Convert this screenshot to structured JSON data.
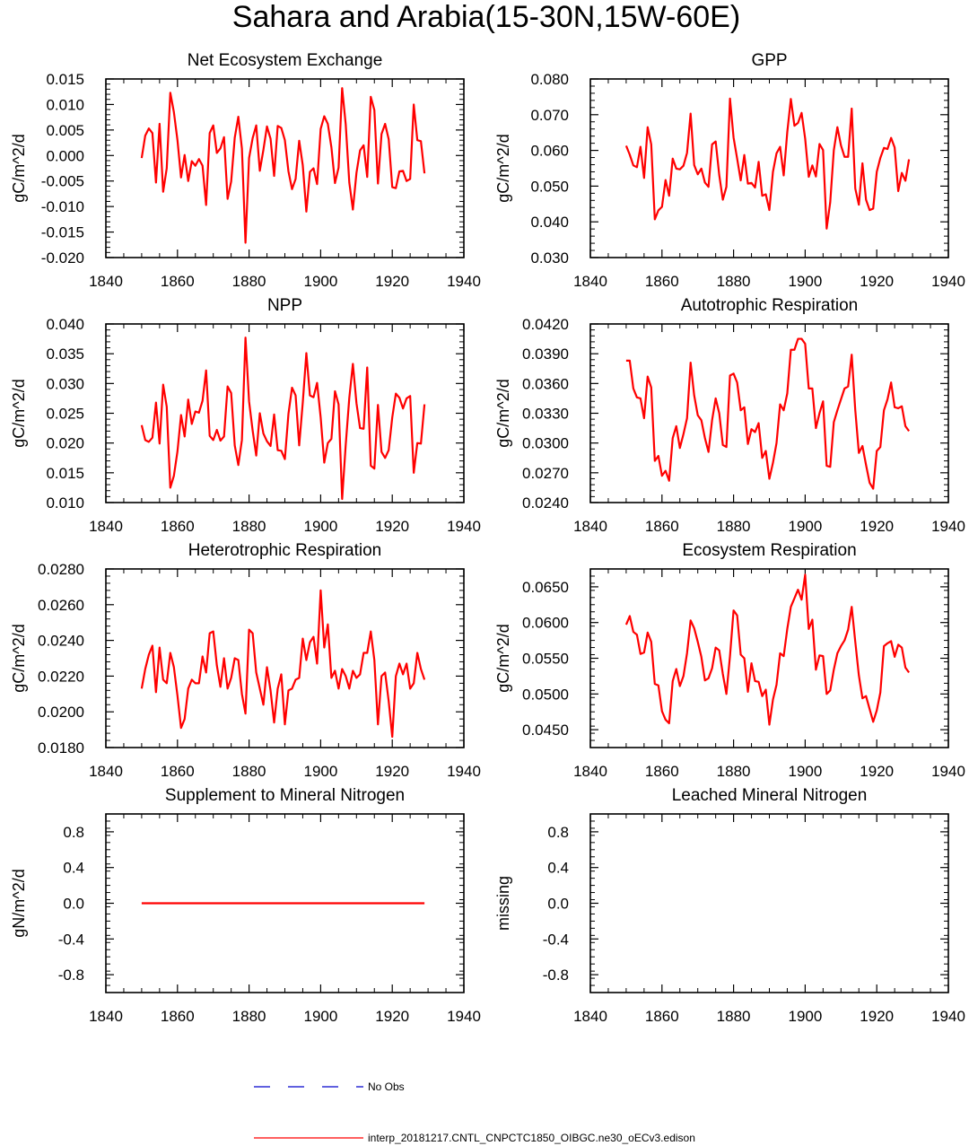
{
  "figure_title": "Sahara and Arabia(15-30N,15W-60E)",
  "legend": [
    {
      "label": "No Obs",
      "color": "#0000cc",
      "style": "dashed"
    },
    {
      "label": "interp_20181217.CNTL_CNPCTC1850_OIBGC.ne30_oECv3.edison",
      "color": "#ff0000",
      "style": "solid"
    }
  ],
  "line_color": "#ff0000",
  "chart_data": [
    {
      "type": "line",
      "title": "Net Ecosystem Exchange",
      "ylabel": "gC/m^2/d",
      "xlim": [
        1840,
        1940
      ],
      "ylim": [
        -0.02,
        0.015
      ],
      "xticks": [
        "1840",
        "1860",
        "1880",
        "1900",
        "1920",
        "1940"
      ],
      "yticks": [
        "-0.020",
        "-0.015",
        "-0.010",
        "-0.005",
        "0.000",
        "0.005",
        "0.010",
        "0.015"
      ],
      "x_start": 1850,
      "values": [
        -0.0005,
        0.0039,
        0.0053,
        0.0044,
        -0.0053,
        0.0062,
        -0.0071,
        -0.0025,
        0.0123,
        0.0085,
        0.003,
        -0.0043,
        0.0001,
        -0.005,
        -0.0011,
        -0.002,
        -0.0007,
        -0.002,
        -0.0097,
        0.0044,
        0.0059,
        0.0005,
        0.0014,
        0.0036,
        -0.0085,
        -0.0051,
        0.0035,
        0.0076,
        0.0014,
        -0.0171,
        -0.0005,
        0.0034,
        0.0059,
        -0.003,
        0.0011,
        0.0057,
        0.0033,
        -0.004,
        0.0058,
        0.0054,
        0.003,
        -0.0031,
        -0.0066,
        -0.0046,
        0.0029,
        -0.0019,
        -0.011,
        -0.0032,
        -0.0025,
        -0.0056,
        0.0052,
        0.0077,
        0.0062,
        0.0016,
        -0.0054,
        -0.0024,
        0.0132,
        0.0061,
        -0.0053,
        -0.0106,
        -0.0034,
        0.001,
        0.002,
        -0.0042,
        0.0115,
        0.0089,
        -0.0055,
        0.0042,
        0.0062,
        0.0032,
        -0.0062,
        -0.0064,
        -0.0031,
        -0.003,
        -0.005,
        -0.0046,
        0.01,
        0.003,
        0.0028,
        -0.0035
      ]
    },
    {
      "type": "line",
      "title": "GPP",
      "ylabel": "gC/m^2/d",
      "xlim": [
        1840,
        1940
      ],
      "ylim": [
        0.03,
        0.08
      ],
      "xticks": [
        "1840",
        "1860",
        "1880",
        "1900",
        "1920",
        "1940"
      ],
      "yticks": [
        "0.030",
        "0.040",
        "0.050",
        "0.060",
        "0.070",
        "0.080"
      ],
      "x_start": 1850,
      "values": [
        0.0613,
        0.0588,
        0.0558,
        0.0553,
        0.061,
        0.0523,
        0.0665,
        0.0617,
        0.0407,
        0.0432,
        0.0442,
        0.0517,
        0.0473,
        0.0577,
        0.0549,
        0.0547,
        0.0557,
        0.0593,
        0.0703,
        0.0559,
        0.0533,
        0.0549,
        0.051,
        0.0498,
        0.0617,
        0.0625,
        0.0531,
        0.0462,
        0.0498,
        0.0745,
        0.0636,
        0.0577,
        0.0516,
        0.0587,
        0.0507,
        0.0509,
        0.0496,
        0.0568,
        0.0473,
        0.0477,
        0.0433,
        0.054,
        0.0592,
        0.061,
        0.053,
        0.0651,
        0.0744,
        0.0669,
        0.0677,
        0.0705,
        0.0633,
        0.0526,
        0.0558,
        0.0527,
        0.0618,
        0.0601,
        0.0381,
        0.0455,
        0.06,
        0.0665,
        0.0614,
        0.0582,
        0.0582,
        0.0717,
        0.0493,
        0.0448,
        0.0564,
        0.0462,
        0.0433,
        0.0437,
        0.054,
        0.0579,
        0.0607,
        0.0604,
        0.0635,
        0.0608,
        0.0486,
        0.0537,
        0.0515,
        0.0575
      ]
    },
    {
      "type": "line",
      "title": "NPP",
      "ylabel": "gC/m^2/d",
      "xlim": [
        1840,
        1940
      ],
      "ylim": [
        0.01,
        0.04
      ],
      "xticks": [
        "1840",
        "1860",
        "1880",
        "1900",
        "1920",
        "1940"
      ],
      "yticks": [
        "0.010",
        "0.015",
        "0.020",
        "0.025",
        "0.030",
        "0.035",
        "0.040"
      ],
      "x_start": 1850,
      "values": [
        0.023,
        0.0205,
        0.0202,
        0.0209,
        0.0268,
        0.0199,
        0.0298,
        0.0261,
        0.0125,
        0.0145,
        0.0186,
        0.0247,
        0.0211,
        0.0273,
        0.0232,
        0.0253,
        0.0251,
        0.0271,
        0.0322,
        0.0212,
        0.0205,
        0.0222,
        0.0204,
        0.0211,
        0.0295,
        0.0284,
        0.0196,
        0.0163,
        0.0205,
        0.0377,
        0.027,
        0.0221,
        0.0179,
        0.025,
        0.0216,
        0.0203,
        0.0195,
        0.0248,
        0.0188,
        0.0187,
        0.0173,
        0.0249,
        0.0293,
        0.028,
        0.0196,
        0.0268,
        0.0351,
        0.028,
        0.0277,
        0.0301,
        0.0243,
        0.0167,
        0.02,
        0.0207,
        0.0287,
        0.0265,
        0.0106,
        0.0197,
        0.0276,
        0.0333,
        0.0267,
        0.0225,
        0.0224,
        0.0327,
        0.0162,
        0.0157,
        0.0264,
        0.0185,
        0.0175,
        0.0188,
        0.0243,
        0.0283,
        0.0276,
        0.0258,
        0.0275,
        0.0279,
        0.015,
        0.02,
        0.0199,
        0.0265
      ]
    },
    {
      "type": "line",
      "title": "Autotrophic Respiration",
      "ylabel": "gC/m^2/d",
      "xlim": [
        1840,
        1940
      ],
      "ylim": [
        0.024,
        0.042
      ],
      "xticks": [
        "1840",
        "1860",
        "1880",
        "1900",
        "1920",
        "1940"
      ],
      "yticks": [
        "0.0240",
        "0.0270",
        "0.0300",
        "0.0330",
        "0.0360",
        "0.0390",
        "0.0420"
      ],
      "x_start": 1850,
      "values": [
        0.0383,
        0.0383,
        0.0355,
        0.0346,
        0.0345,
        0.0325,
        0.0367,
        0.0356,
        0.0282,
        0.0287,
        0.0267,
        0.0272,
        0.0262,
        0.0305,
        0.0317,
        0.0295,
        0.0309,
        0.0325,
        0.0381,
        0.0348,
        0.0328,
        0.0323,
        0.0305,
        0.0291,
        0.0323,
        0.0345,
        0.033,
        0.0298,
        0.0296,
        0.0368,
        0.037,
        0.0361,
        0.0333,
        0.0336,
        0.0299,
        0.0314,
        0.0311,
        0.032,
        0.0285,
        0.0292,
        0.0264,
        0.028,
        0.03,
        0.0339,
        0.0333,
        0.035,
        0.0394,
        0.0394,
        0.0405,
        0.0405,
        0.04,
        0.0355,
        0.0355,
        0.0315,
        0.033,
        0.0342,
        0.0277,
        0.0276,
        0.0321,
        0.0333,
        0.0344,
        0.0355,
        0.0357,
        0.0389,
        0.0333,
        0.029,
        0.0297,
        0.0278,
        0.026,
        0.0254,
        0.0292,
        0.0296,
        0.0333,
        0.0344,
        0.0361,
        0.0336,
        0.0335,
        0.0337,
        0.0317,
        0.0312
      ]
    },
    {
      "type": "line",
      "title": "Heterotrophic Respiration",
      "ylabel": "gC/m^2/d",
      "xlim": [
        1840,
        1940
      ],
      "ylim": [
        0.018,
        0.028
      ],
      "xticks": [
        "1840",
        "1860",
        "1880",
        "1900",
        "1920",
        "1940"
      ],
      "yticks": [
        "0.0180",
        "0.0200",
        "0.0220",
        "0.0240",
        "0.0260",
        "0.0280"
      ],
      "x_start": 1850,
      "values": [
        0.0213,
        0.0224,
        0.0232,
        0.0237,
        0.0211,
        0.0236,
        0.0218,
        0.0216,
        0.0233,
        0.0225,
        0.0209,
        0.0191,
        0.0196,
        0.0213,
        0.0218,
        0.0216,
        0.0216,
        0.0231,
        0.0222,
        0.0244,
        0.0245,
        0.0226,
        0.0214,
        0.023,
        0.0213,
        0.0219,
        0.023,
        0.0229,
        0.021,
        0.0199,
        0.0246,
        0.0244,
        0.0222,
        0.0213,
        0.0204,
        0.0225,
        0.0212,
        0.0194,
        0.0213,
        0.0221,
        0.0193,
        0.0212,
        0.0213,
        0.0218,
        0.0219,
        0.0241,
        0.0229,
        0.0239,
        0.0242,
        0.0227,
        0.0268,
        0.0236,
        0.0249,
        0.0219,
        0.0223,
        0.0213,
        0.0224,
        0.022,
        0.0213,
        0.0223,
        0.0219,
        0.0221,
        0.0233,
        0.0233,
        0.0245,
        0.0229,
        0.0193,
        0.022,
        0.0222,
        0.0206,
        0.0186,
        0.022,
        0.0227,
        0.0221,
        0.0227,
        0.0213,
        0.0216,
        0.0233,
        0.0224,
        0.0218
      ]
    },
    {
      "type": "line",
      "title": "Ecosystem Respiration",
      "ylabel": "gC/m^2/d",
      "xlim": [
        1840,
        1940
      ],
      "ylim": [
        0.0425,
        0.0675
      ],
      "xticks": [
        "1840",
        "1860",
        "1880",
        "1900",
        "1920",
        "1940"
      ],
      "yticks": [
        "0.0450",
        "0.0500",
        "0.0550",
        "0.0600",
        "0.0650"
      ],
      "x_start": 1850,
      "values": [
        0.0597,
        0.0609,
        0.0587,
        0.0583,
        0.0556,
        0.0558,
        0.0586,
        0.0573,
        0.0514,
        0.0512,
        0.0476,
        0.0464,
        0.0459,
        0.0518,
        0.0535,
        0.0511,
        0.0525,
        0.0557,
        0.0603,
        0.0592,
        0.0573,
        0.0552,
        0.0519,
        0.0522,
        0.0536,
        0.0565,
        0.0561,
        0.0528,
        0.05,
        0.0553,
        0.0617,
        0.061,
        0.0555,
        0.055,
        0.0503,
        0.0543,
        0.0518,
        0.0517,
        0.0497,
        0.0506,
        0.0457,
        0.0492,
        0.0513,
        0.0557,
        0.0553,
        0.0591,
        0.0622,
        0.0634,
        0.0646,
        0.0632,
        0.0667,
        0.0591,
        0.0604,
        0.0534,
        0.0554,
        0.0553,
        0.05,
        0.0505,
        0.0534,
        0.0557,
        0.0567,
        0.0575,
        0.059,
        0.0622,
        0.0573,
        0.0526,
        0.0494,
        0.0497,
        0.0479,
        0.0461,
        0.0477,
        0.0502,
        0.0567,
        0.0571,
        0.0574,
        0.0552,
        0.0569,
        0.0565,
        0.0537,
        0.053
      ]
    },
    {
      "type": "line",
      "title": "Supplement to Mineral Nitrogen",
      "ylabel": "gN/m^2/d",
      "xlim": [
        1840,
        1940
      ],
      "ylim": [
        -1.0,
        1.0
      ],
      "xticks": [
        "1840",
        "1860",
        "1880",
        "1900",
        "1920",
        "1940"
      ],
      "yticks": [
        "-0.8",
        "-0.4",
        "0.0",
        "0.4",
        "0.8"
      ],
      "ytick_values": [
        -0.8,
        -0.4,
        0.0,
        0.4,
        0.8
      ],
      "x_start": 1850,
      "values": [
        0,
        0,
        0,
        0,
        0,
        0,
        0,
        0,
        0,
        0,
        0,
        0,
        0,
        0,
        0,
        0,
        0,
        0,
        0,
        0,
        0,
        0,
        0,
        0,
        0,
        0,
        0,
        0,
        0,
        0,
        0,
        0,
        0,
        0,
        0,
        0,
        0,
        0,
        0,
        0,
        0,
        0,
        0,
        0,
        0,
        0,
        0,
        0,
        0,
        0,
        0,
        0,
        0,
        0,
        0,
        0,
        0,
        0,
        0,
        0,
        0,
        0,
        0,
        0,
        0,
        0,
        0,
        0,
        0,
        0,
        0,
        0,
        0,
        0,
        0,
        0,
        0,
        0,
        0,
        0
      ]
    },
    {
      "type": "line",
      "title": "Leached Mineral Nitrogen",
      "ylabel": "missing",
      "xlim": [
        1840,
        1940
      ],
      "ylim": [
        -1.0,
        1.0
      ],
      "xticks": [
        "1840",
        "1860",
        "1880",
        "1900",
        "1920",
        "1940"
      ],
      "yticks": [
        "-0.8",
        "-0.4",
        "0.0",
        "0.4",
        "0.8"
      ],
      "ytick_values": [
        -0.8,
        -0.4,
        0.0,
        0.4,
        0.8
      ],
      "x_start": 1850,
      "values": []
    }
  ]
}
